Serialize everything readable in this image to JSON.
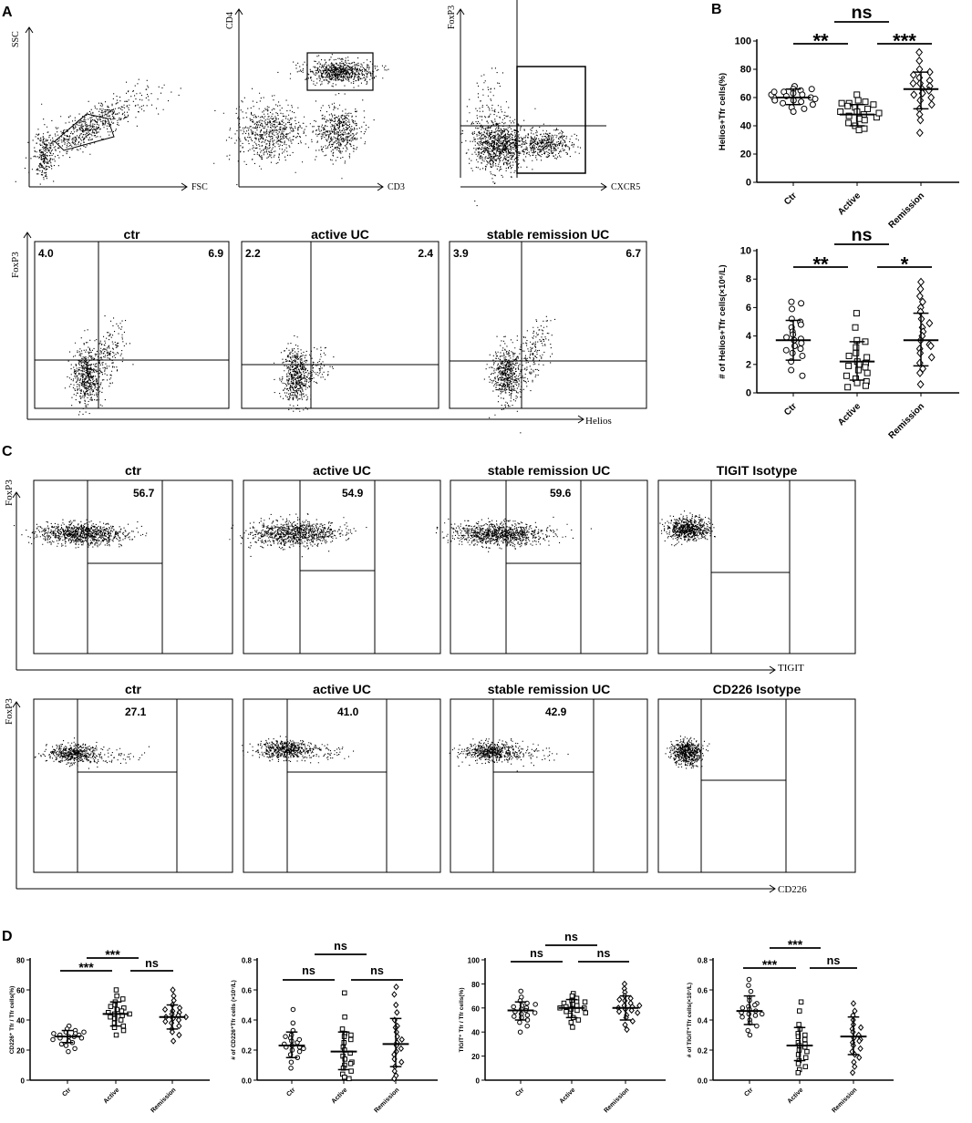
{
  "panel_letters": [
    "A",
    "B",
    "C",
    "D"
  ],
  "gating": {
    "axes": [
      {
        "x": "FSC",
        "y": "SSC"
      },
      {
        "x": "CD3",
        "y": "CD4"
      },
      {
        "x": "CXCR5",
        "y": "FoxP3"
      }
    ]
  },
  "helios_flow": {
    "y_label": "FoxP3",
    "x_label": "Helios",
    "panels": [
      {
        "title": "ctr",
        "left": "4.0",
        "right": "6.9"
      },
      {
        "title": "active UC",
        "left": "2.2",
        "right": "2.4"
      },
      {
        "title": "stable remission UC",
        "left": "3.9",
        "right": "6.7"
      }
    ]
  },
  "tigit_flow": {
    "y_label": "FoxP3",
    "x_label": "TIGIT",
    "panels": [
      {
        "title": "ctr",
        "value": "56.7"
      },
      {
        "title": "active UC",
        "value": "54.9"
      },
      {
        "title": "stable remission UC",
        "value": "59.6"
      },
      {
        "title": "TIGIT Isotype",
        "value": ""
      }
    ]
  },
  "cd226_flow": {
    "y_label": "FoxP3",
    "x_label": "CD226",
    "panels": [
      {
        "title": "ctr",
        "value": "27.1"
      },
      {
        "title": "active UC",
        "value": "41.0"
      },
      {
        "title": "stable remission UC",
        "value": "42.9"
      },
      {
        "title": "CD226 Isotype",
        "value": ""
      }
    ]
  },
  "chart_data": [
    {
      "type": "scatter",
      "id": "B-top",
      "ylabel": "Helios+Tfr cells(%)",
      "categories": [
        "Ctr",
        "Active",
        "Remission"
      ],
      "markers": [
        "circle",
        "square",
        "diamond"
      ],
      "ylim": [
        0,
        100
      ],
      "yticks": [
        "0",
        "20",
        "40",
        "60",
        "80",
        "100"
      ],
      "means": [
        60,
        48,
        66
      ],
      "sd": [
        [
          55,
          66
        ],
        [
          40,
          55
        ],
        [
          52,
          78
        ]
      ],
      "values": [
        [
          68,
          66,
          65,
          64,
          63,
          62,
          61,
          60,
          60,
          59,
          58,
          57,
          56,
          55,
          53,
          52,
          50,
          58,
          62,
          66,
          64
        ],
        [
          62,
          58,
          57,
          56,
          55,
          53,
          52,
          50,
          48,
          47,
          46,
          45,
          44,
          42,
          40,
          38,
          37,
          50,
          49,
          54,
          56
        ],
        [
          92,
          86,
          80,
          78,
          76,
          74,
          72,
          70,
          68,
          66,
          65,
          63,
          60,
          58,
          55,
          52,
          48,
          44,
          35,
          70,
          62
        ]
      ],
      "comparisons": [
        {
          "label": "**"
        },
        {
          "label": "***"
        },
        {
          "label": "ns"
        }
      ]
    },
    {
      "type": "scatter",
      "id": "B-bottom",
      "ylabel": "# of Helios+Tfr cells(×10⁶/L)",
      "categories": [
        "Ctr",
        "Active",
        "Remission"
      ],
      "markers": [
        "circle",
        "square",
        "diamond"
      ],
      "ylim": [
        0,
        10
      ],
      "yticks": [
        "0",
        "2",
        "4",
        "6",
        "8",
        "10"
      ],
      "means": [
        3.7,
        2.2,
        3.7
      ],
      "sd": [
        [
          2.3,
          5.1
        ],
        [
          0.9,
          3.6
        ],
        [
          1.9,
          5.6
        ]
      ],
      "values": [
        [
          6.4,
          6.3,
          5.9,
          5.2,
          5.0,
          4.6,
          4.3,
          4.1,
          3.8,
          3.7,
          3.5,
          3.3,
          3.1,
          3.0,
          2.8,
          2.6,
          2.2,
          1.6,
          1.2,
          4.8,
          3.9
        ],
        [
          5.6,
          4.6,
          3.7,
          3.6,
          3.2,
          2.8,
          2.5,
          2.2,
          2.1,
          2.0,
          1.8,
          1.6,
          1.4,
          1.2,
          1.0,
          0.8,
          0.7,
          0.5,
          0.4,
          2.6,
          1.9
        ],
        [
          7.8,
          7.3,
          6.8,
          6.4,
          6.0,
          5.7,
          5.2,
          4.6,
          4.3,
          4.0,
          3.7,
          3.4,
          3.1,
          2.8,
          2.5,
          2.1,
          1.7,
          1.4,
          0.6,
          4.9,
          3.3
        ]
      ],
      "comparisons": [
        {
          "label": "**"
        },
        {
          "label": "*"
        },
        {
          "label": "ns"
        }
      ]
    },
    {
      "type": "scatter",
      "id": "D-1",
      "ylabel": "CD226⁺ Tfr / Tfr cells(%)",
      "categories": [
        "Ctr",
        "Active",
        "Remission"
      ],
      "markers": [
        "circle",
        "square",
        "diamond"
      ],
      "ylim": [
        0,
        80
      ],
      "yticks": [
        "0",
        "20",
        "40",
        "60",
        "80"
      ],
      "means": [
        29,
        44,
        42
      ],
      "sd": [
        [
          25,
          33
        ],
        [
          36,
          52
        ],
        [
          34,
          50
        ]
      ],
      "values": [
        [
          36,
          34,
          33,
          32,
          31,
          30,
          30,
          29,
          29,
          28,
          28,
          27,
          26,
          25,
          24,
          23,
          21,
          19,
          31,
          32
        ],
        [
          60,
          56,
          54,
          52,
          50,
          48,
          47,
          46,
          45,
          44,
          43,
          42,
          41,
          40,
          38,
          36,
          35,
          33,
          30,
          49,
          44
        ],
        [
          60,
          56,
          53,
          50,
          48,
          46,
          45,
          44,
          43,
          42,
          41,
          40,
          39,
          38,
          36,
          34,
          32,
          30,
          26,
          47,
          42
        ]
      ],
      "comparisons": [
        {
          "label": "***"
        },
        {
          "label": "ns"
        },
        {
          "label": "***"
        }
      ]
    },
    {
      "type": "scatter",
      "id": "D-2",
      "ylabel": "# of CD226⁺Tfr cells (×10⁷/L)",
      "categories": [
        "Ctr",
        "Active",
        "Remission"
      ],
      "markers": [
        "circle",
        "square",
        "diamond"
      ],
      "ylim": [
        0,
        0.8
      ],
      "yticks": [
        "0.0",
        "0.2",
        "0.4",
        "0.6",
        "0.8"
      ],
      "means": [
        0.23,
        0.19,
        0.24
      ],
      "sd": [
        [
          0.15,
          0.32
        ],
        [
          0.07,
          0.32
        ],
        [
          0.09,
          0.41
        ]
      ],
      "values": [
        [
          0.47,
          0.38,
          0.33,
          0.3,
          0.28,
          0.26,
          0.25,
          0.24,
          0.23,
          0.22,
          0.22,
          0.21,
          0.2,
          0.19,
          0.17,
          0.15,
          0.12,
          0.08,
          0.27,
          0.29
        ],
        [
          0.58,
          0.42,
          0.34,
          0.31,
          0.29,
          0.27,
          0.25,
          0.22,
          0.2,
          0.18,
          0.16,
          0.14,
          0.12,
          0.1,
          0.08,
          0.06,
          0.04,
          0.02,
          0.01,
          0.3,
          0.11
        ],
        [
          0.62,
          0.57,
          0.5,
          0.45,
          0.4,
          0.36,
          0.32,
          0.29,
          0.27,
          0.25,
          0.23,
          0.21,
          0.19,
          0.17,
          0.14,
          0.12,
          0.09,
          0.06,
          0.03,
          0.01,
          0.35
        ]
      ],
      "comparisons": [
        {
          "label": "ns"
        },
        {
          "label": "ns"
        },
        {
          "label": "ns"
        }
      ]
    },
    {
      "type": "scatter",
      "id": "D-3",
      "ylabel": "TIGIT⁺ Tfr / Tfr cells(%)",
      "categories": [
        "Ctr",
        "Active",
        "Remission"
      ],
      "markers": [
        "circle",
        "square",
        "diamond"
      ],
      "ylim": [
        0,
        100
      ],
      "yticks": [
        "0",
        "20",
        "40",
        "60",
        "80",
        "100"
      ],
      "means": [
        58,
        60,
        60
      ],
      "sd": [
        [
          50,
          65
        ],
        [
          52,
          67
        ],
        [
          50,
          70
        ]
      ],
      "values": [
        [
          74,
          69,
          66,
          64,
          62,
          60,
          59,
          58,
          57,
          56,
          55,
          54,
          53,
          52,
          50,
          48,
          45,
          40,
          61,
          63
        ],
        [
          72,
          70,
          68,
          66,
          65,
          64,
          63,
          62,
          61,
          60,
          59,
          58,
          57,
          56,
          54,
          52,
          50,
          48,
          44,
          65,
          60
        ],
        [
          80,
          76,
          73,
          70,
          68,
          66,
          64,
          62,
          61,
          60,
          59,
          58,
          57,
          56,
          54,
          52,
          49,
          46,
          42,
          67,
          62
        ]
      ],
      "comparisons": [
        {
          "label": "ns"
        },
        {
          "label": "ns"
        },
        {
          "label": "ns"
        }
      ]
    },
    {
      "type": "scatter",
      "id": "D-4",
      "ylabel": "# of TIGIT⁺Tfr cells(×10⁷/L)",
      "categories": [
        "Ctr",
        "Active",
        "Remission"
      ],
      "markers": [
        "circle",
        "square",
        "diamond"
      ],
      "ylim": [
        0,
        0.8
      ],
      "yticks": [
        "0.0",
        "0.2",
        "0.4",
        "0.6",
        "0.8"
      ],
      "means": [
        0.46,
        0.23,
        0.29
      ],
      "sd": [
        [
          0.37,
          0.56
        ],
        [
          0.13,
          0.35
        ],
        [
          0.17,
          0.42
        ]
      ],
      "values": [
        [
          0.67,
          0.63,
          0.59,
          0.55,
          0.53,
          0.51,
          0.49,
          0.47,
          0.46,
          0.45,
          0.44,
          0.43,
          0.42,
          0.4,
          0.38,
          0.36,
          0.33,
          0.3,
          0.5,
          0.48,
          0.44
        ],
        [
          0.52,
          0.46,
          0.37,
          0.34,
          0.31,
          0.29,
          0.27,
          0.25,
          0.23,
          0.22,
          0.2,
          0.19,
          0.17,
          0.15,
          0.13,
          0.11,
          0.09,
          0.07,
          0.05,
          0.3,
          0.24
        ],
        [
          0.51,
          0.46,
          0.43,
          0.4,
          0.37,
          0.34,
          0.32,
          0.3,
          0.28,
          0.27,
          0.25,
          0.23,
          0.21,
          0.19,
          0.17,
          0.15,
          0.12,
          0.09,
          0.05,
          0.35,
          0.26
        ]
      ],
      "comparisons": [
        {
          "label": "***"
        },
        {
          "label": "ns"
        },
        {
          "label": "***"
        }
      ]
    }
  ]
}
